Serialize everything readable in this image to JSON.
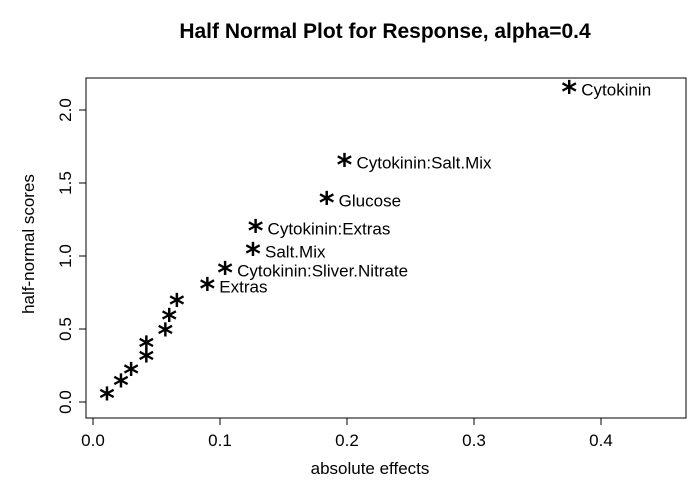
{
  "chart_data": {
    "type": "scatter",
    "title": "Half Normal Plot for Response, alpha=0.4",
    "xlabel": "absolute effects",
    "ylabel": "half-normal scores",
    "xlim": [
      0,
      0.46
    ],
    "ylim": [
      -0.07,
      2.22
    ],
    "x_ticks": [
      0.0,
      0.1,
      0.2,
      0.3,
      0.4
    ],
    "x_tick_labels": [
      "0.0",
      "0.1",
      "0.2",
      "0.3",
      "0.4"
    ],
    "y_ticks": [
      0.0,
      0.5,
      1.0,
      1.5,
      2.0
    ],
    "y_tick_labels": [
      "0.0",
      "0.5",
      "1.0",
      "1.5",
      "2.0"
    ],
    "grid": false,
    "marker": "*",
    "points": [
      {
        "x": 0.011,
        "y": 0.04,
        "label": ""
      },
      {
        "x": 0.022,
        "y": 0.13,
        "label": ""
      },
      {
        "x": 0.03,
        "y": 0.21,
        "label": ""
      },
      {
        "x": 0.042,
        "y": 0.3,
        "label": ""
      },
      {
        "x": 0.042,
        "y": 0.39,
        "label": ""
      },
      {
        "x": 0.057,
        "y": 0.48,
        "label": ""
      },
      {
        "x": 0.06,
        "y": 0.58,
        "label": ""
      },
      {
        "x": 0.066,
        "y": 0.68,
        "label": ""
      },
      {
        "x": 0.09,
        "y": 0.79,
        "label": "Extras"
      },
      {
        "x": 0.104,
        "y": 0.9,
        "label": "Cytokinin:Sliver.Nitrate"
      },
      {
        "x": 0.126,
        "y": 1.03,
        "label": "Salt.Mix"
      },
      {
        "x": 0.128,
        "y": 1.19,
        "label": "Cytokinin:Extras"
      },
      {
        "x": 0.184,
        "y": 1.38,
        "label": "Glucose"
      },
      {
        "x": 0.198,
        "y": 1.64,
        "label": "Cytokinin:Salt.Mix"
      },
      {
        "x": 0.375,
        "y": 2.14,
        "label": "Cytokinin"
      }
    ]
  }
}
